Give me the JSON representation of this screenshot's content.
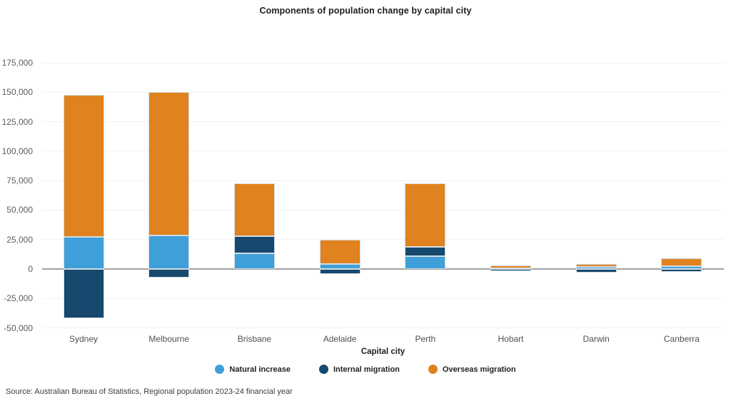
{
  "title": "Components of population change by capital city",
  "source": "Source: Australian Bureau of Statistics, Regional population 2023-24 financial year",
  "colors": {
    "natural_increase": "#3FA0D9",
    "internal_migration": "#17486D",
    "overseas_migration": "#E0821D",
    "gridline": "#f2f2f2",
    "zero_line": "#a0a0a0"
  },
  "chart_data": {
    "type": "bar",
    "stacked": true,
    "title": "Components of population change by capital city",
    "xlabel": "Capital city",
    "ylabel": "",
    "grid": true,
    "legend_position": "bottom",
    "ylim": [
      -50000,
      175000
    ],
    "ytick_step": 25000,
    "yticks": [
      {
        "value": 175000,
        "label": "175,000"
      },
      {
        "value": 150000,
        "label": "150,000"
      },
      {
        "value": 125000,
        "label": "125,000"
      },
      {
        "value": 100000,
        "label": "100,000"
      },
      {
        "value": 75000,
        "label": "75,000"
      },
      {
        "value": 50000,
        "label": "50,000"
      },
      {
        "value": 25000,
        "label": "25,000"
      },
      {
        "value": 0,
        "label": "0"
      },
      {
        "value": -25000,
        "label": "-25,000"
      },
      {
        "value": -50000,
        "label": "-50,000"
      }
    ],
    "categories": [
      "Sydney",
      "Melbourne",
      "Brisbane",
      "Adelaide",
      "Perth",
      "Hobart",
      "Darwin",
      "Canberra"
    ],
    "series": [
      {
        "name": "Natural increase",
        "color": "#3FA0D9",
        "values": [
          27000,
          28500,
          13500,
          4000,
          11000,
          500,
          1500,
          2500
        ]
      },
      {
        "name": "Internal migration",
        "color": "#17486D",
        "values": [
          -42000,
          -7500,
          14500,
          -4500,
          8000,
          -2000,
          -3000,
          -2500
        ]
      },
      {
        "name": "Overseas migration",
        "color": "#E0821D",
        "values": [
          121000,
          121500,
          44500,
          21000,
          53500,
          2500,
          3000,
          6500
        ]
      }
    ]
  }
}
